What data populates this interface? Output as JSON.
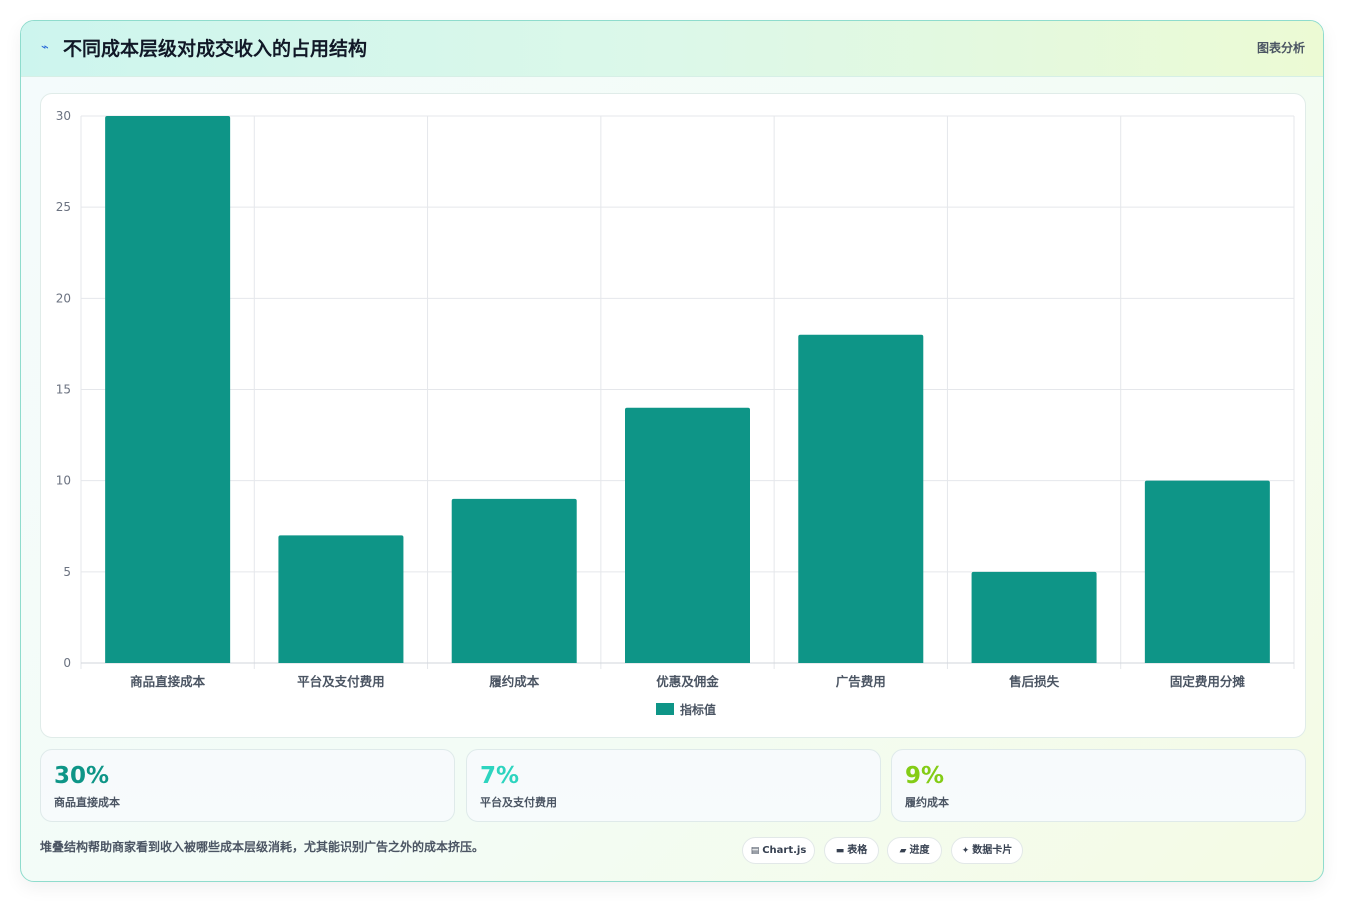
{
  "header": {
    "icon": "lightning-icon",
    "title": "不同成本层级对成交收入的占用结构",
    "tag": "图表分析"
  },
  "chart_data": {
    "type": "bar",
    "title": "",
    "xlabel": "",
    "ylabel": "",
    "categories": [
      "商品直接成本",
      "平台及支付费用",
      "履约成本",
      "优惠及佣金",
      "广告费用",
      "售后损失",
      "固定费用分摊"
    ],
    "series": [
      {
        "name": "指标值",
        "values": [
          30,
          7,
          9,
          14,
          18,
          5,
          10
        ],
        "color": "#0e9587"
      }
    ],
    "ylim": [
      0,
      30
    ],
    "yticks": [
      0,
      5,
      10,
      15,
      20,
      25,
      30
    ],
    "grid": true,
    "legend": "bottom"
  },
  "stats": [
    {
      "value": "30%",
      "label": "商品直接成本",
      "color": "#0e9587"
    },
    {
      "value": "7%",
      "label": "平台及支付费用",
      "color": "#2dd4bf"
    },
    {
      "value": "9%",
      "label": "履约成本",
      "color": "#84cc16"
    }
  ],
  "footer": {
    "note": "堆叠结构帮助商家看到收入被哪些成本层级消耗，尤其能识别广告之外的成本挤压。",
    "pills": [
      {
        "icon": "chart-icon",
        "glyph": "▤",
        "label": "Chart.js"
      },
      {
        "icon": "table-icon",
        "glyph": "▬",
        "label": "表格"
      },
      {
        "icon": "progress-icon",
        "glyph": "▰",
        "label": "进度"
      },
      {
        "icon": "sparkle-icon",
        "glyph": "✦",
        "label": "数据卡片"
      }
    ]
  }
}
